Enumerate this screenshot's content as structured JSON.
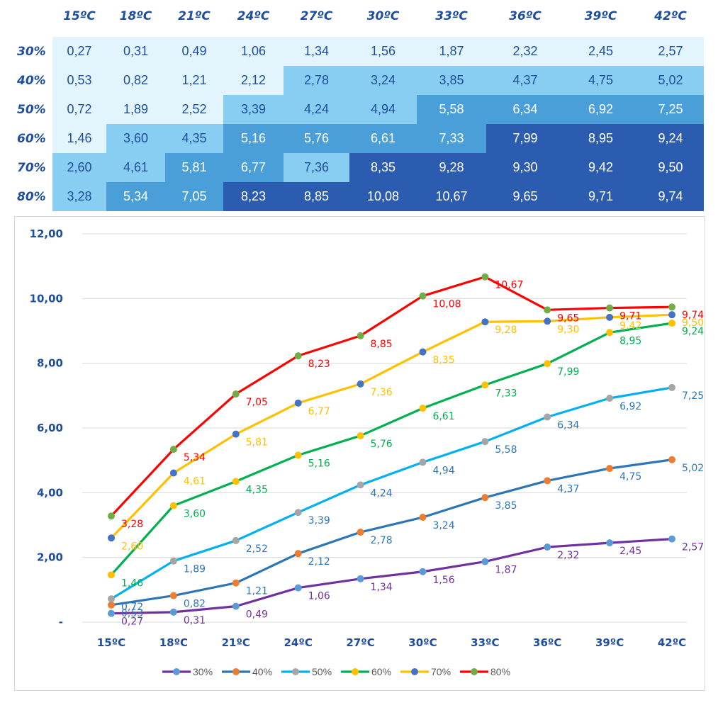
{
  "table": {
    "columns": [
      "15ºC",
      "18ºC",
      "21ºC",
      "24ºC",
      "27ºC",
      "30ºC",
      "33ºC",
      "36ºC",
      "39ºC",
      "42ºC"
    ],
    "rows": [
      {
        "label": "30%",
        "values": [
          "0,27",
          "0,31",
          "0,49",
          "1,06",
          "1,34",
          "1,56",
          "1,87",
          "2,32",
          "2,45",
          "2,57"
        ]
      },
      {
        "label": "40%",
        "values": [
          "0,53",
          "0,82",
          "1,21",
          "2,12",
          "2,78",
          "3,24",
          "3,85",
          "4,37",
          "4,75",
          "5,02"
        ]
      },
      {
        "label": "50%",
        "values": [
          "0,72",
          "1,89",
          "2,52",
          "3,39",
          "4,24",
          "4,94",
          "5,58",
          "6,34",
          "6,92",
          "7,25"
        ]
      },
      {
        "label": "60%",
        "values": [
          "1,46",
          "3,60",
          "4,35",
          "5,16",
          "5,76",
          "6,61",
          "7,33",
          "7,99",
          "8,95",
          "9,24"
        ]
      },
      {
        "label": "70%",
        "values": [
          "2,60",
          "4,61",
          "5,81",
          "6,77",
          "7,36",
          "8,35",
          "9,28",
          "9,30",
          "9,42",
          "9,50"
        ]
      },
      {
        "label": "80%",
        "values": [
          "3,28",
          "5,34",
          "7,05",
          "8,23",
          "8,85",
          "10,08",
          "10,67",
          "9,65",
          "9,71",
          "9,74"
        ]
      }
    ],
    "shade_levels": [
      [
        0,
        0,
        0,
        0,
        0,
        0,
        0,
        0,
        0,
        0
      ],
      [
        0,
        0,
        0,
        0,
        1,
        1,
        1,
        1,
        1,
        1
      ],
      [
        0,
        0,
        0,
        1,
        1,
        1,
        2,
        2,
        2,
        2
      ],
      [
        0,
        1,
        1,
        2,
        2,
        2,
        2,
        3,
        3,
        3
      ],
      [
        1,
        1,
        2,
        2,
        1,
        3,
        3,
        3,
        3,
        3
      ],
      [
        1,
        2,
        2,
        3,
        3,
        3,
        3,
        3,
        3,
        3
      ]
    ],
    "shade_colors": [
      "#e3f5fc",
      "#88cdf2",
      "#4a9fd8",
      "#2c5cb0"
    ],
    "text_colors": [
      "#1f4e9e",
      "#1f4e9e",
      "#ffffff",
      "#ffffff"
    ]
  },
  "chart_data": {
    "type": "line",
    "x": [
      "15ºC",
      "18ºC",
      "21ºC",
      "24ºC",
      "27ºC",
      "30ºC",
      "33ºC",
      "36ºC",
      "39ºC",
      "42ºC"
    ],
    "ylim": [
      0,
      12
    ],
    "y_ticks": [
      {
        "value": 0,
        "label": "-"
      },
      {
        "value": 2,
        "label": "2,00"
      },
      {
        "value": 4,
        "label": "4,00"
      },
      {
        "value": 6,
        "label": "6,00"
      },
      {
        "value": 8,
        "label": "8,00"
      },
      {
        "value": 10,
        "label": "10,00"
      },
      {
        "value": 12,
        "label": "12,00"
      }
    ],
    "grid": true,
    "legend_position": "bottom",
    "series": [
      {
        "name": "30%",
        "line_color": "#7030a0",
        "marker_color": "#5b9bd5",
        "label_color": "#7030a0",
        "values": [
          0.27,
          0.31,
          0.49,
          1.06,
          1.34,
          1.56,
          1.87,
          2.32,
          2.45,
          2.57
        ],
        "labels": [
          "0,27",
          "0,31",
          "0,49",
          "1,06",
          "1,34",
          "1,56",
          "1,87",
          "2,32",
          "2,45",
          "2,57"
        ]
      },
      {
        "name": "40%",
        "line_color": "#2e75b6",
        "marker_color": "#ed7d31",
        "label_color": "#2e75b6",
        "values": [
          0.53,
          0.82,
          1.21,
          2.12,
          2.78,
          3.24,
          3.85,
          4.37,
          4.75,
          5.02
        ],
        "labels": [
          "0,53",
          "0,82",
          "1,21",
          "2,12",
          "2,78",
          "3,24",
          "3,85",
          "4,37",
          "4,75",
          "5,02"
        ]
      },
      {
        "name": "50%",
        "line_color": "#00b0f0",
        "marker_color": "#a5a5a5",
        "label_color": "#2e75b6",
        "values": [
          0.72,
          1.89,
          2.52,
          3.39,
          4.24,
          4.94,
          5.58,
          6.34,
          6.92,
          7.25
        ],
        "labels": [
          "0,72",
          "1,89",
          "2,52",
          "3,39",
          "4,24",
          "4,94",
          "5,58",
          "6,34",
          "6,92",
          "7,25"
        ]
      },
      {
        "name": "60%",
        "line_color": "#00b050",
        "marker_color": "#ffc000",
        "label_color": "#00b050",
        "values": [
          1.46,
          3.6,
          4.35,
          5.16,
          5.76,
          6.61,
          7.33,
          7.99,
          8.95,
          9.24
        ],
        "labels": [
          "1,46",
          "3,60",
          "4,35",
          "5,16",
          "5,76",
          "6,61",
          "7,33",
          "7,99",
          "8,95",
          "9,24"
        ]
      },
      {
        "name": "70%",
        "line_color": "#ffc000",
        "marker_color": "#4472c4",
        "label_color": "#ffc000",
        "values": [
          2.6,
          4.61,
          5.81,
          6.77,
          7.36,
          8.35,
          9.28,
          9.3,
          9.42,
          9.5
        ],
        "labels": [
          "2,60",
          "4,61",
          "5,81",
          "6,77",
          "7,36",
          "8,35",
          "9,28",
          "9,30",
          "9,42",
          "9,50"
        ]
      },
      {
        "name": "80%",
        "line_color": "#ff0000",
        "marker_color": "#70ad47",
        "label_color": "#ff0000",
        "values": [
          3.28,
          5.34,
          7.05,
          8.23,
          8.85,
          10.08,
          10.67,
          9.65,
          9.71,
          9.74
        ],
        "labels": [
          "3,28",
          "5,34",
          "7,05",
          "8,23",
          "8,85",
          "10,08",
          "10,67",
          "9,65",
          "9,71",
          "9,74"
        ]
      }
    ]
  }
}
